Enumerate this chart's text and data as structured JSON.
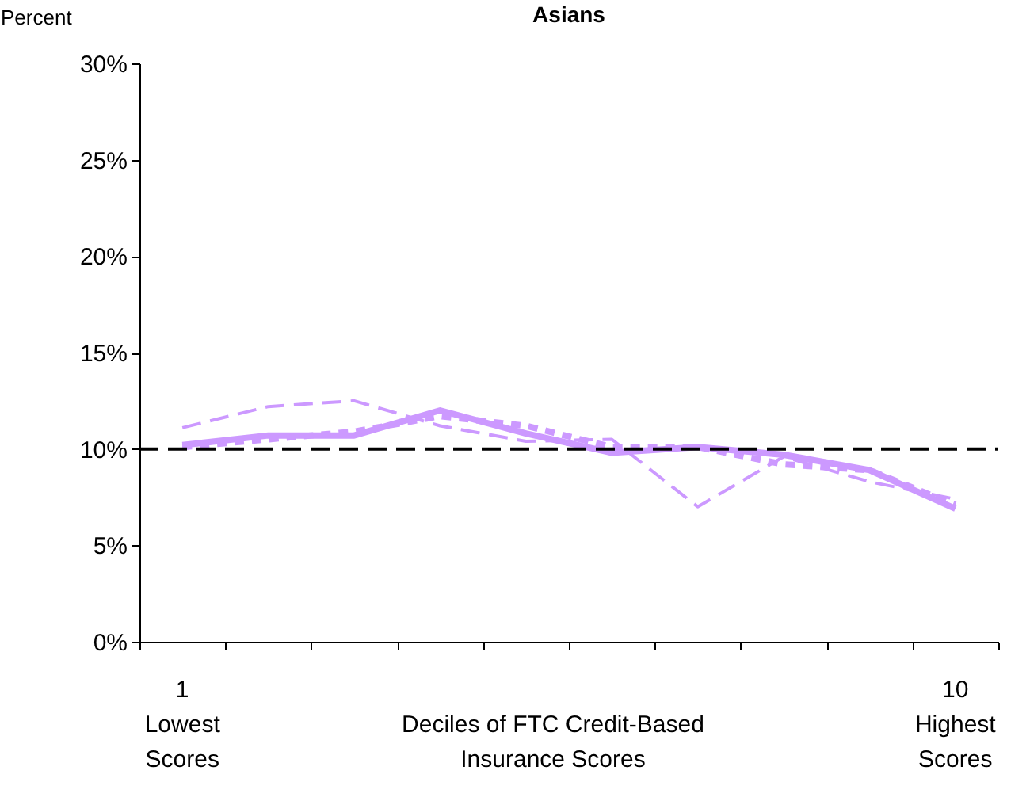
{
  "chart_data": {
    "type": "line",
    "title": "Asians",
    "ylabel": "Percent",
    "xlabel": "Deciles of FTC Credit-Based\nInsurance Scores",
    "categories": [
      "1\nLowest\nScores",
      null,
      null,
      null,
      null,
      null,
      null,
      null,
      null,
      "10\nHighest\nScores"
    ],
    "series": [
      {
        "color": "#cc99ff",
        "line_style": "solid",
        "values": [
          10.2,
          10.7,
          10.7,
          12.0,
          10.8,
          9.8,
          10.1,
          9.7,
          8.9,
          6.9
        ]
      },
      {
        "color": "#cc99ff",
        "line_style": "dashed",
        "values": [
          11.1,
          12.2,
          12.5,
          11.2,
          10.4,
          10.5,
          7.0,
          9.6,
          8.3,
          7.4
        ]
      },
      {
        "color": "#cc99ff",
        "line_style": "dotted",
        "values": [
          10.1,
          10.5,
          10.9,
          11.7,
          11.2,
          10.1,
          10.1,
          9.2,
          8.9,
          7.1
        ]
      }
    ],
    "ylim": [
      0,
      30
    ],
    "yticks": [
      {
        "value": 0,
        "label": "0%"
      },
      {
        "value": 5,
        "label": "5%"
      },
      {
        "value": 10,
        "label": "10%"
      },
      {
        "value": 15,
        "label": "15%"
      },
      {
        "value": 20,
        "label": "20%"
      },
      {
        "value": 25,
        "label": "25%"
      },
      {
        "value": 30,
        "label": "30%"
      }
    ],
    "ref_lines": [
      {
        "axis": "y",
        "value": 10,
        "color": "#000000",
        "line_style": "dashed"
      }
    ],
    "marker": "none"
  }
}
